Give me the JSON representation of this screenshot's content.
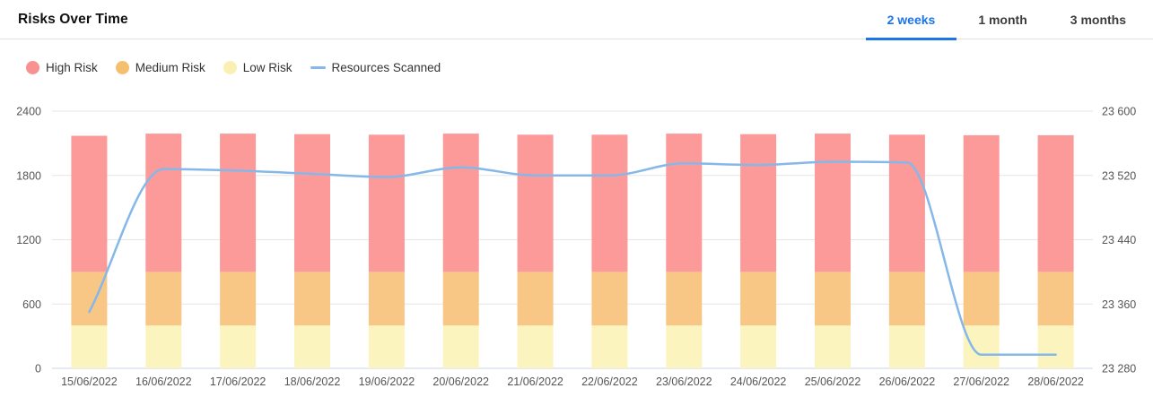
{
  "header": {
    "title": "Risks Over Time"
  },
  "tabs": [
    {
      "label": "2 weeks",
      "active": true
    },
    {
      "label": "1 month",
      "active": false
    },
    {
      "label": "3 months",
      "active": false
    }
  ],
  "legend": [
    {
      "label": "High Risk",
      "marker": "dot",
      "color": "#f8918f"
    },
    {
      "label": "Medium Risk",
      "marker": "dot",
      "color": "#f5bf70"
    },
    {
      "label": "Low Risk",
      "marker": "dot",
      "color": "#faf0b3"
    },
    {
      "label": "Resources Scanned",
      "marker": "line",
      "color": "#85b8e9"
    }
  ],
  "chart_data": {
    "type": "bar",
    "subtype": "stacked-column-with-spline-overlay",
    "title": "Risks Over Time",
    "stacked": true,
    "grid": true,
    "legend_position": "top-left",
    "categories": [
      "15/06/2022",
      "16/06/2022",
      "17/06/2022",
      "18/06/2022",
      "19/06/2022",
      "20/06/2022",
      "21/06/2022",
      "22/06/2022",
      "23/06/2022",
      "24/06/2022",
      "25/06/2022",
      "26/06/2022",
      "27/06/2022",
      "28/06/2022"
    ],
    "series": [
      {
        "name": "High Risk",
        "type": "bar",
        "axis": "left",
        "color": "#fb9a99",
        "values": [
          1270,
          1290,
          1290,
          1285,
          1280,
          1290,
          1280,
          1280,
          1290,
          1285,
          1290,
          1280,
          1275,
          1275
        ]
      },
      {
        "name": "Medium Risk",
        "type": "bar",
        "axis": "left",
        "color": "#f8c786",
        "values": [
          500,
          500,
          500,
          500,
          500,
          500,
          500,
          500,
          500,
          500,
          500,
          500,
          500,
          500
        ]
      },
      {
        "name": "Low Risk",
        "type": "bar",
        "axis": "left",
        "color": "#fcf4bf",
        "values": [
          400,
          400,
          400,
          400,
          400,
          400,
          400,
          400,
          400,
          400,
          400,
          400,
          400,
          400
        ]
      },
      {
        "name": "Resources Scanned",
        "type": "line",
        "axis": "right",
        "color": "#85b8e9",
        "values": [
          23350,
          23528,
          23526,
          23522,
          23518,
          23530,
          23520,
          23520,
          23535,
          23533,
          23537,
          23536,
          23297,
          23297
        ]
      }
    ],
    "left_axis": {
      "min": 0,
      "max": 2400,
      "ticks": [
        2400,
        1800,
        1200,
        600,
        0
      ]
    },
    "right_axis": {
      "min": 23280,
      "max": 23600,
      "ticks": [
        23600,
        23520,
        23440,
        23360,
        23280
      ],
      "tick_labels": [
        "23 600",
        "23 520",
        "23 440",
        "23 360",
        "23 280"
      ]
    },
    "colors": {
      "gridline": "#e6e6e6",
      "baseline": "#ccd6eb",
      "axis_text": "#555555",
      "accent": "#1b74e8"
    }
  }
}
